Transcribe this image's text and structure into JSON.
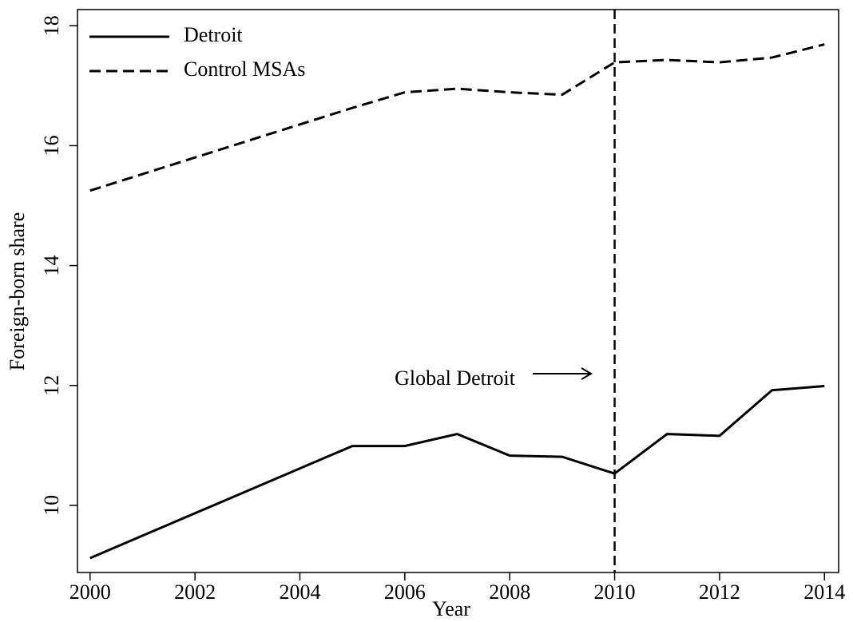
{
  "chart_data": {
    "type": "line",
    "x_label": "Year",
    "y_label": "Foreign-born share",
    "x": [
      2000,
      2005,
      2006,
      2007,
      2008,
      2009,
      2010,
      2011,
      2012,
      2013,
      2014
    ],
    "series": [
      {
        "name": "Detroit",
        "color": "#000000",
        "dash": "solid",
        "values": [
          9.12,
          10.99,
          10.99,
          11.19,
          10.83,
          10.81,
          10.53,
          11.19,
          11.16,
          11.92,
          11.99
        ]
      },
      {
        "name": "Control MSAs",
        "color": "#000000",
        "dash": "dashed",
        "values": [
          15.25,
          16.63,
          16.89,
          16.95,
          16.89,
          16.85,
          17.39,
          17.43,
          17.39,
          17.47,
          17.69
        ]
      }
    ],
    "xlim": [
      1999.76,
      2014.27
    ],
    "ylim": [
      8.88,
      18.27
    ],
    "xticks": [
      2000,
      2002,
      2004,
      2006,
      2008,
      2010,
      2012,
      2014
    ],
    "yticks": [
      10,
      12,
      14,
      16,
      18
    ],
    "vline": 2010,
    "annotation": "Global Detroit",
    "legend": "upper-left",
    "grid": false
  }
}
